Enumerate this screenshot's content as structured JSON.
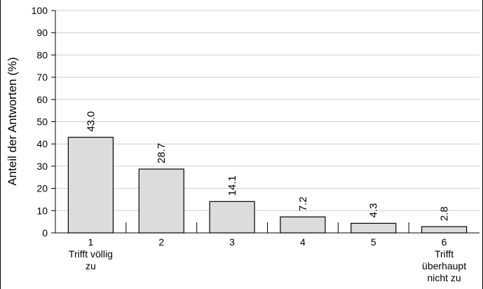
{
  "chart_data": {
    "type": "bar",
    "categories": [
      [
        "1",
        "Trifft völlig",
        "zu"
      ],
      [
        "2"
      ],
      [
        "3"
      ],
      [
        "4"
      ],
      [
        "5"
      ],
      [
        "6",
        "Trifft",
        "überhaupt",
        "nicht zu"
      ]
    ],
    "values": [
      43.0,
      28.7,
      14.1,
      7.2,
      4.3,
      2.8
    ],
    "value_labels": [
      "43.0",
      "28.7",
      "14.1",
      "7.2",
      "4.3",
      "2.8"
    ],
    "ylabel": "Anteil der Antworten (%)",
    "ylim": [
      0,
      100
    ],
    "yticks": [
      0,
      10,
      20,
      30,
      40,
      50,
      60,
      70,
      80,
      90,
      100
    ],
    "grid": true,
    "bar_color": "#dcdcdc"
  }
}
